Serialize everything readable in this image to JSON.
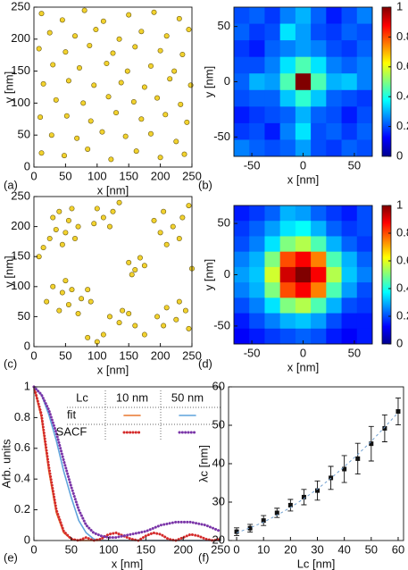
{
  "chart_data": [
    {
      "type": "scatter",
      "panel_label": "(a)",
      "xlabel": "x [nm]",
      "ylabel": "y [nm]",
      "xlim": [
        0,
        250
      ],
      "ylim": [
        0,
        250
      ],
      "xticks": [
        0,
        50,
        100,
        150,
        200,
        250
      ],
      "yticks": [
        0,
        50,
        100,
        150,
        200,
        250
      ],
      "color": "#f2d22e",
      "edgecolor": "#6b5a10",
      "x": [
        12,
        45,
        80,
        110,
        150,
        190,
        230,
        25,
        65,
        98,
        135,
        170,
        210,
        245,
        8,
        50,
        88,
        125,
        160,
        200,
        235,
        30,
        72,
        115,
        148,
        185,
        222,
        15,
        55,
        95,
        138,
        175,
        215,
        248,
        35,
        78,
        118,
        158,
        195,
        232,
        10,
        52,
        90,
        130,
        170,
        208,
        242,
        28,
        68,
        108,
        145,
        185,
        225,
        12,
        48,
        85,
        122,
        162,
        200,
        238
      ],
      "y": [
        240,
        230,
        245,
        228,
        238,
        242,
        232,
        210,
        205,
        215,
        200,
        212,
        205,
        215,
        185,
        180,
        190,
        178,
        188,
        182,
        176,
        160,
        155,
        162,
        150,
        158,
        150,
        130,
        135,
        128,
        132,
        125,
        138,
        128,
        105,
        100,
        110,
        102,
        108,
        98,
        78,
        80,
        72,
        85,
        75,
        82,
        70,
        50,
        45,
        55,
        48,
        52,
        40,
        22,
        18,
        28,
        12,
        25,
        15,
        20
      ]
    },
    {
      "type": "heatmap",
      "panel_label": "(b)",
      "xlabel": "x [nm]",
      "ylabel": "y [nm]",
      "xlim": [
        -67.5,
        67.5
      ],
      "ylim": [
        -67.5,
        67.5
      ],
      "xticks": [
        -50,
        0,
        50
      ],
      "yticks": [
        -50,
        0,
        50
      ],
      "colormap": "jet",
      "clim": [
        0,
        1
      ],
      "cticks": [
        0,
        0.2,
        0.4,
        0.6,
        0.8,
        1
      ],
      "x": [
        -60,
        -45,
        -30,
        -15,
        0,
        15,
        30,
        45,
        60
      ],
      "y": [
        60,
        45,
        30,
        15,
        0,
        -15,
        -30,
        -45,
        -60
      ],
      "z": [
        [
          0.2,
          0.22,
          0.18,
          0.25,
          0.3,
          0.22,
          0.15,
          0.2,
          0.25
        ],
        [
          0.22,
          0.18,
          0.2,
          0.35,
          0.28,
          0.2,
          0.18,
          0.22,
          0.2
        ],
        [
          0.18,
          0.15,
          0.22,
          0.25,
          0.28,
          0.25,
          0.2,
          0.18,
          0.22
        ],
        [
          0.2,
          0.2,
          0.25,
          0.35,
          0.45,
          0.35,
          0.25,
          0.22,
          0.25
        ],
        [
          0.22,
          0.3,
          0.28,
          0.45,
          1,
          0.45,
          0.3,
          0.32,
          0.25
        ],
        [
          0.2,
          0.22,
          0.22,
          0.32,
          0.42,
          0.32,
          0.22,
          0.2,
          0.18
        ],
        [
          0.15,
          0.18,
          0.2,
          0.22,
          0.3,
          0.22,
          0.2,
          0.15,
          0.2
        ],
        [
          0.18,
          0.2,
          0.15,
          0.25,
          0.35,
          0.2,
          0.22,
          0.18,
          0.22
        ],
        [
          0.25,
          0.22,
          0.2,
          0.22,
          0.28,
          0.2,
          0.18,
          0.22,
          0.2
        ]
      ]
    },
    {
      "type": "scatter",
      "panel_label": "(c)",
      "xlabel": "x [nm]",
      "ylabel": "y [nm]",
      "xlim": [
        0,
        250
      ],
      "ylim": [
        0,
        250
      ],
      "xticks": [
        0,
        50,
        100,
        150,
        200,
        250
      ],
      "yticks": [
        0,
        50,
        100,
        150,
        200,
        250
      ],
      "color": "#f2d22e",
      "edgecolor": "#6b5a10",
      "x": [
        30,
        40,
        55,
        60,
        35,
        50,
        70,
        25,
        45,
        65,
        100,
        110,
        125,
        120,
        135,
        95,
        190,
        205,
        220,
        235,
        245,
        200,
        230,
        210,
        150,
        160,
        175,
        168,
        155,
        30,
        45,
        60,
        75,
        55,
        40,
        70,
        85,
        90,
        20,
        50,
        120,
        135,
        150,
        160,
        140,
        195,
        210,
        225,
        240,
        205,
        230,
        245,
        85,
        100,
        110,
        8,
        15,
        250,
        175
      ],
      "y": [
        215,
        225,
        210,
        230,
        195,
        190,
        200,
        180,
        170,
        180,
        230,
        215,
        225,
        200,
        240,
        205,
        210,
        225,
        200,
        215,
        235,
        190,
        180,
        170,
        140,
        128,
        135,
        148,
        120,
        100,
        90,
        95,
        80,
        70,
        60,
        55,
        95,
        75,
        75,
        110,
        50,
        40,
        55,
        35,
        60,
        50,
        65,
        45,
        60,
        35,
        75,
        30,
        15,
        8,
        20,
        150,
        165,
        130,
        20
      ]
    },
    {
      "type": "heatmap",
      "panel_label": "(d)",
      "xlabel": "x [nm]",
      "ylabel": "y [nm]",
      "xlim": [
        -67.5,
        67.5
      ],
      "ylim": [
        -67.5,
        67.5
      ],
      "xticks": [
        -50,
        0,
        50
      ],
      "yticks": [
        -50,
        0,
        50
      ],
      "colormap": "jet",
      "clim": [
        0,
        1
      ],
      "cticks": [
        0,
        0.2,
        0.4,
        0.6,
        0.8,
        1
      ],
      "x": [
        -60,
        -45,
        -30,
        -15,
        0,
        15,
        30,
        45,
        60
      ],
      "y": [
        60,
        45,
        30,
        15,
        0,
        -15,
        -30,
        -45,
        -60
      ],
      "z": [
        [
          0.15,
          0.18,
          0.22,
          0.3,
          0.28,
          0.22,
          0.18,
          0.15,
          0.2
        ],
        [
          0.18,
          0.22,
          0.28,
          0.35,
          0.38,
          0.3,
          0.22,
          0.18,
          0.2
        ],
        [
          0.2,
          0.25,
          0.35,
          0.5,
          0.55,
          0.45,
          0.3,
          0.22,
          0.18
        ],
        [
          0.25,
          0.3,
          0.5,
          0.8,
          0.88,
          0.75,
          0.45,
          0.3,
          0.22
        ],
        [
          0.28,
          0.32,
          0.58,
          0.92,
          1,
          0.88,
          0.55,
          0.32,
          0.25
        ],
        [
          0.25,
          0.3,
          0.5,
          0.8,
          0.88,
          0.75,
          0.45,
          0.28,
          0.2
        ],
        [
          0.2,
          0.25,
          0.35,
          0.5,
          0.55,
          0.45,
          0.3,
          0.2,
          0.18
        ],
        [
          0.15,
          0.2,
          0.25,
          0.3,
          0.32,
          0.28,
          0.2,
          0.15,
          0.15
        ],
        [
          0.12,
          0.15,
          0.18,
          0.2,
          0.22,
          0.2,
          0.15,
          0.12,
          0.15
        ]
      ]
    },
    {
      "type": "line",
      "panel_label": "(e)",
      "xlabel": "x [nm]",
      "ylabel": "Arb. units",
      "xlim": [
        0,
        250
      ],
      "ylim": [
        0,
        1
      ],
      "xticks": [
        0,
        50,
        100,
        150,
        200,
        250
      ],
      "yticks": [
        0,
        0.2,
        0.4,
        0.6,
        0.8,
        1
      ],
      "legend": {
        "header": [
          "Lc",
          "10 nm",
          "50 nm"
        ],
        "rows": [
          "fit",
          "SACF"
        ]
      },
      "x": [
        0,
        10,
        20,
        30,
        40,
        50,
        60,
        70,
        80,
        90,
        100,
        110,
        120,
        130,
        140,
        150,
        160,
        170,
        180,
        190,
        200,
        210,
        220,
        230,
        240,
        250
      ],
      "series": [
        {
          "color": "#e8772e",
          "style": "solid",
          "values": [
            1,
            0.8,
            0.45,
            0.18,
            0.05,
            0.01,
            0,
            0,
            0,
            0,
            0,
            0,
            0,
            0,
            0,
            0,
            0,
            0,
            0,
            0,
            0,
            0,
            0,
            0,
            0,
            0
          ]
        },
        {
          "color": "#5fa3dc",
          "style": "solid",
          "values": [
            1,
            0.95,
            0.82,
            0.65,
            0.45,
            0.28,
            0.13,
            0.05,
            0.01,
            0,
            0,
            0,
            0,
            0,
            0,
            0,
            0,
            0,
            0,
            0,
            0,
            0,
            0,
            0,
            0,
            0
          ]
        },
        {
          "color": "#d42a2a",
          "style": "dotted",
          "values": [
            1,
            0.82,
            0.48,
            0.2,
            0.06,
            0.01,
            0,
            0.02,
            0,
            0.01,
            0.04,
            0.05,
            0.03,
            0.01,
            0,
            0.03,
            0.05,
            0.04,
            0.01,
            0,
            0.02,
            0.04,
            0.03,
            0.01,
            0,
            0.01
          ]
        },
        {
          "color": "#7a35a8",
          "style": "dotted",
          "values": [
            1,
            0.95,
            0.85,
            0.7,
            0.52,
            0.35,
            0.2,
            0.1,
            0.05,
            0.03,
            0.02,
            0.02,
            0.03,
            0.04,
            0.05,
            0.06,
            0.08,
            0.1,
            0.11,
            0.12,
            0.12,
            0.12,
            0.11,
            0.1,
            0.08,
            0.06
          ]
        }
      ]
    },
    {
      "type": "errorbar",
      "panel_label": "(f)",
      "xlabel": "Lc [nm]",
      "ylabel": "λc [nm]",
      "xlim": [
        -3,
        62
      ],
      "ylim": [
        20,
        60
      ],
      "xticks": [
        0,
        10,
        20,
        30,
        40,
        50,
        60
      ],
      "yticks": [
        20,
        30,
        40,
        50,
        60
      ],
      "x": [
        0,
        5,
        10,
        15,
        20,
        25,
        30,
        35,
        40,
        45,
        50,
        55,
        60
      ],
      "series": [
        {
          "color": "#111111",
          "values": [
            22.3,
            23.2,
            25.2,
            27.2,
            29.2,
            31.3,
            33,
            36.3,
            38.6,
            41.3,
            45.2,
            49.2,
            53.6
          ],
          "errors": [
            1,
            1,
            1.3,
            1.2,
            1.5,
            2,
            2.5,
            3,
            3.5,
            4,
            4.5,
            3.5,
            3.5
          ]
        },
        {
          "color": "#6f9fd0",
          "style": "dashed",
          "values": [
            22,
            23.3,
            24.8,
            26.6,
            28.6,
            30.9,
            33.4,
            36.2,
            39.2,
            42.4,
            45.8,
            49.5,
            53.3
          ]
        }
      ]
    }
  ]
}
